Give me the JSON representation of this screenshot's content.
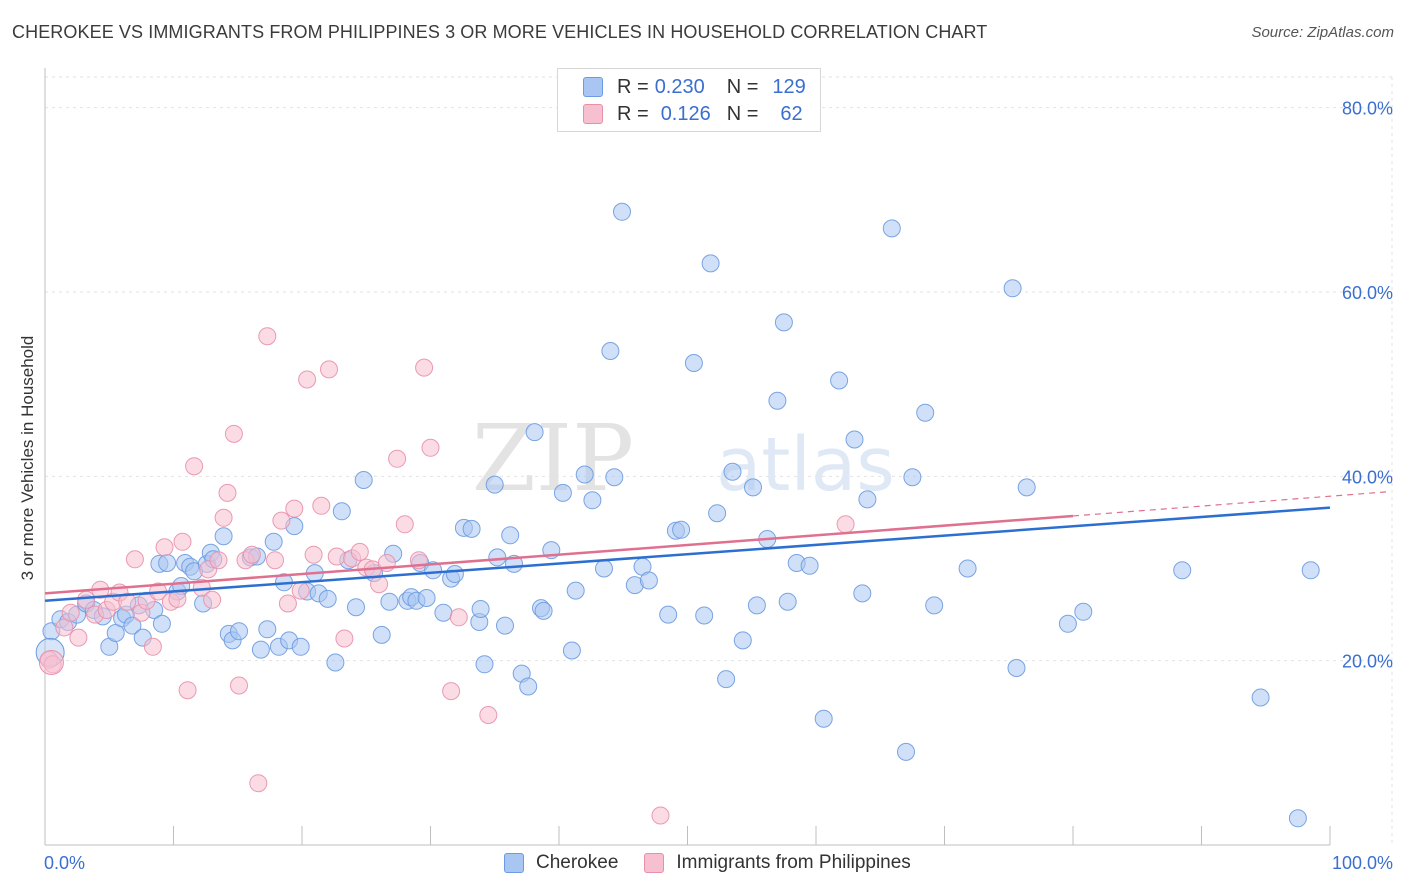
{
  "title": "CHEROKEE VS IMMIGRANTS FROM PHILIPPINES 3 OR MORE VEHICLES IN HOUSEHOLD CORRELATION CHART",
  "source": "Source: ZipAtlas.com",
  "watermark": {
    "zip": "ZIP",
    "atlas": "atlas"
  },
  "legend": {
    "rows": [
      {
        "r_label": "R =",
        "r_value": "0.230",
        "n_label": "N =",
        "n_value": "129",
        "color": "#a9c6f2",
        "border": "#6b9be0"
      },
      {
        "r_label": "R =",
        "r_value": "0.126",
        "n_label": "N =",
        "n_value": "62",
        "color": "#f7c0d0",
        "border": "#e890ab"
      }
    ]
  },
  "bottom_legend": [
    {
      "label": "Cherokee",
      "color": "#a9c6f2",
      "border": "#6b9be0"
    },
    {
      "label": "Immigrants from Philippines",
      "color": "#f7c0d0",
      "border": "#e890ab"
    }
  ],
  "chart_data": {
    "type": "scatter",
    "title": "CHEROKEE VS IMMIGRANTS FROM PHILIPPINES 3 OR MORE VEHICLES IN HOUSEHOLD CORRELATION CHART",
    "xlabel": "",
    "ylabel": "3 or more Vehicles in Household",
    "xlim": [
      0,
      100
    ],
    "ylim": [
      0,
      83
    ],
    "x_tick_labels": [
      "0.0%",
      "100.0%"
    ],
    "y_ticks": [
      20,
      40,
      60,
      80
    ],
    "y_tick_labels": [
      "20.0%",
      "40.0%",
      "60.0%",
      "80.0%"
    ],
    "grid": true,
    "series": [
      {
        "name": "Cherokee",
        "color": "#a9c6f2",
        "stroke": "#6b9be0",
        "trend_color": "#2d6fd1",
        "trend": {
          "x0": 0,
          "y0": 26.5,
          "x1": 100,
          "y1": 36.6
        },
        "points": [
          [
            0.5,
            23.2
          ],
          [
            1.2,
            24.5
          ],
          [
            1.8,
            24.2
          ],
          [
            2.5,
            25.0
          ],
          [
            3.2,
            26.2
          ],
          [
            3.8,
            25.5
          ],
          [
            4.5,
            24.8
          ],
          [
            5.0,
            21.5
          ],
          [
            5.5,
            23.0
          ],
          [
            6.0,
            24.6
          ],
          [
            6.3,
            25.0
          ],
          [
            6.8,
            23.8
          ],
          [
            7.3,
            26.0
          ],
          [
            7.6,
            22.5
          ],
          [
            8.5,
            25.5
          ],
          [
            8.9,
            30.5
          ],
          [
            9.1,
            24.0
          ],
          [
            9.5,
            30.6
          ],
          [
            10.3,
            27.5
          ],
          [
            10.6,
            28.1
          ],
          [
            10.9,
            30.6
          ],
          [
            11.3,
            30.2
          ],
          [
            11.6,
            29.7
          ],
          [
            12.3,
            26.2
          ],
          [
            12.6,
            30.5
          ],
          [
            12.9,
            31.7
          ],
          [
            13.1,
            31.0
          ],
          [
            13.9,
            33.5
          ],
          [
            14.3,
            22.9
          ],
          [
            14.6,
            22.2
          ],
          [
            15.1,
            23.2
          ],
          [
            16.0,
            31.2
          ],
          [
            16.5,
            31.3
          ],
          [
            16.8,
            21.2
          ],
          [
            17.3,
            23.4
          ],
          [
            17.8,
            32.9
          ],
          [
            18.2,
            21.5
          ],
          [
            18.6,
            28.5
          ],
          [
            19.0,
            22.2
          ],
          [
            19.4,
            34.6
          ],
          [
            19.9,
            21.5
          ],
          [
            20.4,
            27.5
          ],
          [
            21.0,
            29.5
          ],
          [
            21.3,
            27.3
          ],
          [
            22.0,
            26.7
          ],
          [
            22.6,
            19.8
          ],
          [
            23.1,
            36.2
          ],
          [
            23.6,
            30.9
          ],
          [
            24.2,
            25.8
          ],
          [
            24.8,
            39.6
          ],
          [
            25.6,
            29.5
          ],
          [
            26.2,
            22.8
          ],
          [
            26.8,
            26.4
          ],
          [
            27.1,
            31.6
          ],
          [
            28.2,
            26.5
          ],
          [
            28.5,
            26.9
          ],
          [
            28.9,
            26.5
          ],
          [
            29.2,
            30.6
          ],
          [
            29.7,
            26.8
          ],
          [
            30.2,
            29.8
          ],
          [
            31.0,
            25.2
          ],
          [
            31.6,
            28.9
          ],
          [
            31.9,
            29.4
          ],
          [
            32.6,
            34.4
          ],
          [
            33.2,
            34.3
          ],
          [
            33.8,
            24.2
          ],
          [
            33.9,
            25.6
          ],
          [
            34.2,
            19.6
          ],
          [
            35.0,
            39.1
          ],
          [
            35.2,
            31.2
          ],
          [
            35.8,
            23.8
          ],
          [
            36.2,
            33.6
          ],
          [
            36.5,
            30.5
          ],
          [
            37.1,
            18.6
          ],
          [
            37.6,
            17.2
          ],
          [
            38.1,
            44.8
          ],
          [
            38.6,
            25.7
          ],
          [
            38.8,
            25.4
          ],
          [
            39.4,
            32.0
          ],
          [
            40.3,
            38.2
          ],
          [
            41.0,
            21.1
          ],
          [
            41.3,
            27.6
          ],
          [
            42.0,
            40.2
          ],
          [
            42.6,
            37.4
          ],
          [
            43.5,
            30.0
          ],
          [
            44.0,
            53.6
          ],
          [
            44.3,
            39.9
          ],
          [
            44.9,
            68.7
          ],
          [
            45.9,
            28.2
          ],
          [
            46.5,
            30.2
          ],
          [
            47.0,
            28.7
          ],
          [
            48.5,
            25.0
          ],
          [
            49.1,
            34.1
          ],
          [
            49.5,
            34.2
          ],
          [
            50.5,
            52.3
          ],
          [
            51.3,
            24.9
          ],
          [
            51.8,
            63.1
          ],
          [
            52.3,
            36.0
          ],
          [
            53.0,
            18.0
          ],
          [
            53.5,
            40.5
          ],
          [
            54.3,
            22.2
          ],
          [
            55.1,
            38.8
          ],
          [
            55.4,
            26.0
          ],
          [
            56.2,
            33.2
          ],
          [
            57.0,
            48.2
          ],
          [
            57.5,
            56.7
          ],
          [
            57.8,
            26.4
          ],
          [
            58.5,
            30.6
          ],
          [
            59.5,
            30.3
          ],
          [
            60.6,
            13.7
          ],
          [
            61.8,
            50.4
          ],
          [
            63.0,
            44.0
          ],
          [
            63.6,
            27.3
          ],
          [
            64.0,
            37.5
          ],
          [
            65.9,
            66.9
          ],
          [
            67.0,
            10.1
          ],
          [
            67.5,
            39.9
          ],
          [
            68.5,
            46.9
          ],
          [
            69.2,
            26.0
          ],
          [
            71.8,
            30.0
          ],
          [
            75.3,
            60.4
          ],
          [
            75.6,
            19.2
          ],
          [
            76.4,
            38.8
          ],
          [
            79.6,
            24.0
          ],
          [
            80.8,
            25.3
          ],
          [
            88.5,
            29.8
          ],
          [
            94.6,
            16.0
          ],
          [
            97.5,
            2.9
          ],
          [
            98.5,
            29.8
          ]
        ]
      },
      {
        "name": "Immigrants from Philippines",
        "color": "#f7c0d0",
        "stroke": "#e890ab",
        "trend_color": "#e0708f",
        "trend": {
          "x0": 0,
          "y0": 27.3,
          "x1": 80,
          "y1": 35.7
        },
        "trend_dashed_to": {
          "x": 100,
          "y": 37.8
        },
        "points": [
          [
            0.3,
            20.1
          ],
          [
            0.6,
            19.6
          ],
          [
            1.5,
            23.6
          ],
          [
            2.0,
            25.2
          ],
          [
            2.6,
            22.5
          ],
          [
            3.2,
            26.6
          ],
          [
            3.9,
            25.0
          ],
          [
            4.3,
            27.7
          ],
          [
            4.8,
            25.5
          ],
          [
            5.3,
            26.4
          ],
          [
            5.8,
            27.4
          ],
          [
            6.4,
            26.4
          ],
          [
            7.0,
            31.0
          ],
          [
            7.5,
            25.2
          ],
          [
            7.9,
            26.5
          ],
          [
            8.4,
            21.5
          ],
          [
            8.8,
            27.5
          ],
          [
            9.3,
            32.3
          ],
          [
            9.8,
            26.4
          ],
          [
            10.3,
            26.7
          ],
          [
            10.7,
            32.9
          ],
          [
            11.1,
            16.8
          ],
          [
            11.6,
            41.1
          ],
          [
            12.2,
            27.9
          ],
          [
            12.7,
            29.9
          ],
          [
            13.0,
            26.6
          ],
          [
            13.5,
            30.9
          ],
          [
            13.9,
            35.5
          ],
          [
            14.2,
            38.2
          ],
          [
            14.7,
            44.6
          ],
          [
            15.1,
            17.3
          ],
          [
            15.6,
            30.9
          ],
          [
            16.1,
            31.5
          ],
          [
            16.6,
            6.7
          ],
          [
            17.3,
            55.2
          ],
          [
            17.9,
            30.9
          ],
          [
            18.4,
            35.2
          ],
          [
            18.9,
            26.2
          ],
          [
            19.4,
            36.5
          ],
          [
            19.9,
            27.6
          ],
          [
            20.4,
            50.5
          ],
          [
            20.9,
            31.5
          ],
          [
            21.5,
            36.8
          ],
          [
            22.1,
            51.6
          ],
          [
            22.7,
            31.3
          ],
          [
            23.3,
            22.4
          ],
          [
            23.9,
            31.1
          ],
          [
            24.5,
            31.8
          ],
          [
            25.0,
            30.1
          ],
          [
            25.5,
            29.9
          ],
          [
            26.0,
            28.3
          ],
          [
            26.6,
            30.6
          ],
          [
            27.4,
            41.9
          ],
          [
            28.0,
            34.8
          ],
          [
            29.1,
            30.9
          ],
          [
            29.5,
            51.8
          ],
          [
            30.0,
            43.1
          ],
          [
            31.6,
            16.7
          ],
          [
            32.2,
            24.7
          ],
          [
            34.5,
            14.1
          ],
          [
            47.9,
            3.2
          ],
          [
            62.3,
            34.8
          ]
        ]
      }
    ]
  }
}
